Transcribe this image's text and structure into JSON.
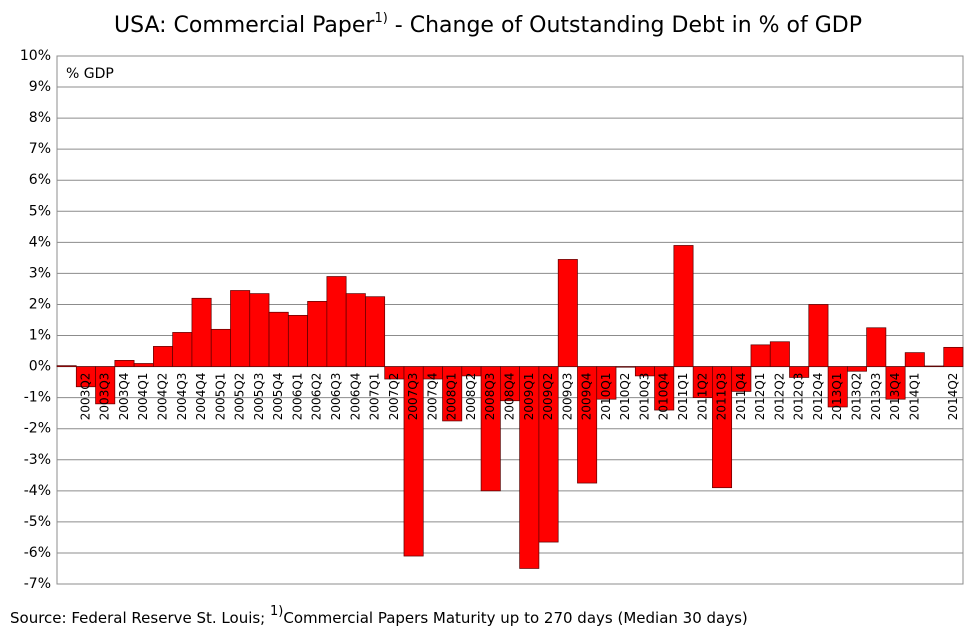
{
  "chart_data": {
    "type": "bar",
    "title": [
      "USA: Commercial Paper",
      "1)",
      " - Change of Outstanding Debt in % of GDP"
    ],
    "annotation": "% GDP",
    "source": [
      "Source: Federal Reserve St. Louis; ",
      "1)",
      "Commercial Papers Maturity up to 270 days (Median 30 days)"
    ],
    "categories": [
      null,
      "2003Q2",
      "2003Q3",
      "2003Q4",
      "2004Q1",
      "2004Q2",
      "2004Q3",
      "2004Q4",
      "2005Q1",
      "2005Q2",
      "2005Q3",
      "2005Q4",
      "2006Q1",
      "2006Q2",
      "2006Q3",
      "2006Q4",
      "2007Q1",
      "2007Q2",
      "2007Q3",
      "2007Q4",
      "2008Q1",
      "2008Q2",
      "2008Q3",
      "2008Q4",
      "2009Q1",
      "2009Q2",
      "2009Q3",
      "2009Q4",
      "2010Q1",
      "2010Q2",
      "2010Q3",
      "2010Q4",
      "2011Q1",
      "2011Q2",
      "2011Q3",
      "2011Q4",
      "2012Q1",
      "2012Q2",
      "2012Q3",
      "2012Q4",
      "2013Q1",
      "2013Q2",
      "2013Q3",
      "2013Q4",
      "2014Q1",
      null,
      "2014Q2"
    ],
    "values": [
      0.03,
      -0.65,
      -1.2,
      0.2,
      0.1,
      0.65,
      1.1,
      2.2,
      1.2,
      2.45,
      2.35,
      1.75,
      1.65,
      2.1,
      2.9,
      2.35,
      2.25,
      -0.4,
      -6.1,
      -0.4,
      -1.75,
      -0.3,
      -4.0,
      -1.1,
      -6.5,
      -5.65,
      3.45,
      -3.75,
      -1.05,
      -0.02,
      -0.3,
      -1.4,
      3.9,
      -1.0,
      -3.9,
      -0.8,
      0.7,
      0.8,
      -0.35,
      2.0,
      -1.3,
      -0.15,
      1.25,
      -1.05,
      0.45,
      0.02,
      0.62
    ],
    "color": "#ff0000",
    "ylim": [
      -7,
      10
    ],
    "yticks": [
      {
        "value": -7,
        "label": "-7%"
      },
      {
        "value": -6,
        "label": "-6%"
      },
      {
        "value": -5,
        "label": "-5%"
      },
      {
        "value": -4,
        "label": "-4%"
      },
      {
        "value": -3,
        "label": "-3%"
      },
      {
        "value": -2,
        "label": "-2%"
      },
      {
        "value": -1,
        "label": "-1%"
      },
      {
        "value": 0,
        "label": "0%"
      },
      {
        "value": 1,
        "label": "1%"
      },
      {
        "value": 2,
        "label": "2%"
      },
      {
        "value": 3,
        "label": "3%"
      },
      {
        "value": 4,
        "label": "4%"
      },
      {
        "value": 5,
        "label": "5%"
      },
      {
        "value": 6,
        "label": "6%"
      },
      {
        "value": 7,
        "label": "7%"
      },
      {
        "value": 8,
        "label": "8%"
      },
      {
        "value": 9,
        "label": "9%"
      },
      {
        "value": 10,
        "label": "10%"
      }
    ],
    "grid": true
  }
}
